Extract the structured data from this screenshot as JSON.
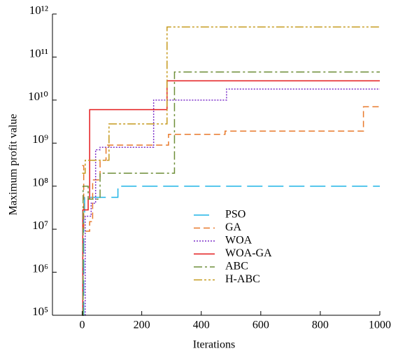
{
  "chart_data": {
    "type": "step-line",
    "xlabel": "Iterations",
    "ylabel": "Maximum profit value",
    "xlim": [
      -100,
      1000
    ],
    "xticks": [
      0,
      200,
      400,
      600,
      800,
      1000
    ],
    "ylim": [
      100000,
      1000000000000
    ],
    "log_y": true,
    "yticks": [
      {
        "value": 100000,
        "label": "10⁵"
      },
      {
        "value": 1000000,
        "label": "10⁶"
      },
      {
        "value": 10000000,
        "label": "10⁷"
      },
      {
        "value": 100000000,
        "label": "10⁸"
      },
      {
        "value": 1000000000,
        "label": "10⁹"
      },
      {
        "value": 10000000000,
        "label": "10¹⁰"
      },
      {
        "value": 100000000000,
        "label": "10¹¹"
      },
      {
        "value": 1000000000000,
        "label": "10¹²"
      }
    ],
    "legend": "lower-center",
    "series": [
      {
        "name": "PSO",
        "color": "#1fb4e6",
        "dash": "22,8",
        "x": [
          0,
          5,
          8,
          120,
          1000
        ],
        "values": [
          100000,
          20000000,
          55000000,
          100000000,
          100000000
        ]
      },
      {
        "name": "GA",
        "color": "#e8792b",
        "dash": "9,5",
        "x": [
          0,
          5,
          25,
          35,
          60,
          80,
          290,
          480,
          945,
          1000
        ],
        "values": [
          300000000,
          9000000,
          15000000,
          140000000,
          400000000,
          900000000,
          1600000000,
          1900000000,
          7000000000,
          7000000000
        ]
      },
      {
        "name": "WOA",
        "color": "#7b2fc9",
        "dash": "2,2",
        "x": [
          0,
          10,
          30,
          45,
          60,
          240,
          485,
          1000
        ],
        "values": [
          100000,
          20000000,
          40000000,
          700000000,
          800000000,
          10000000000,
          18000000000,
          18000000000
        ]
      },
      {
        "name": "WOA-GA",
        "color": "#e41a1c",
        "dash": "",
        "x": [
          0,
          2,
          20,
          25,
          285,
          1000
        ],
        "values": [
          100000,
          28000000,
          50000000,
          6000000000,
          28000000000,
          28000000000
        ]
      },
      {
        "name": "ABC",
        "color": "#6f8f3a",
        "dash": "12,4,3,4",
        "x": [
          0,
          3,
          20,
          60,
          310,
          1000
        ],
        "values": [
          100000,
          100000000,
          50000000,
          200000000,
          45000000000,
          45000000000
        ]
      },
      {
        "name": "H-ABC",
        "color": "#c59a1e",
        "dash": "12,3,3,3,3,3",
        "x": [
          0,
          10,
          90,
          285,
          1000
        ],
        "values": [
          200000000,
          400000000,
          2800000000,
          500000000000,
          500000000000
        ]
      }
    ]
  }
}
